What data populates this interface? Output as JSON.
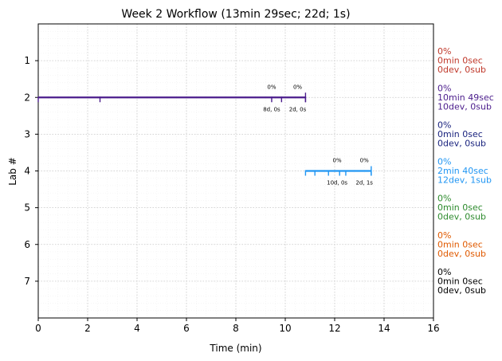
{
  "chart_data": {
    "type": "timeline",
    "title": "Week 2 Workflow (13min 29sec; 22d; 1s)",
    "xlabel": "Time (min)",
    "ylabel": "Lab #",
    "xlim": [
      0,
      16
    ],
    "ylim": [
      8,
      0
    ],
    "x_ticks": [
      0,
      2,
      4,
      6,
      8,
      10,
      12,
      14,
      16
    ],
    "y_ticks": [
      1,
      2,
      3,
      4,
      5,
      6,
      7
    ],
    "grid": true,
    "labs": [
      {
        "lab": 1,
        "color": "#c0392b",
        "lines": [
          "0%",
          "0min 0sec",
          "0dev, 0sub"
        ],
        "segments": []
      },
      {
        "lab": 2,
        "color": "#4b1d8c",
        "lines": [
          "0%",
          "10min 49sec",
          "10dev, 0sub"
        ],
        "segments": [
          {
            "start": 0,
            "end": 10.82
          }
        ],
        "ticks": [
          0,
          2.5,
          9.45,
          9.85,
          10.82
        ],
        "annotations": [
          {
            "x": 9.45,
            "above": "0%",
            "below": "8d, 0s"
          },
          {
            "x": 10.5,
            "above": "0%",
            "below": "2d, 0s"
          }
        ]
      },
      {
        "lab": 3,
        "color": "#1a237e",
        "lines": [
          "0%",
          "0min 0sec",
          "0dev, 0sub"
        ],
        "segments": []
      },
      {
        "lab": 4,
        "color": "#2196f3",
        "lines": [
          "0%",
          "2min 40sec",
          "12dev, 1sub"
        ],
        "segments": [
          {
            "start": 10.82,
            "end": 13.48
          }
        ],
        "ticks": [
          10.82,
          11.2,
          11.75,
          12.2,
          12.45,
          13.48
        ],
        "annotations": [
          {
            "x": 12.1,
            "above": "0%",
            "below": "10d, 0s"
          },
          {
            "x": 13.2,
            "above": "0%",
            "below": "2d, 1s"
          }
        ]
      },
      {
        "lab": 5,
        "color": "#2e8b2e",
        "lines": [
          "0%",
          "0min 0sec",
          "0dev, 0sub"
        ],
        "segments": []
      },
      {
        "lab": 6,
        "color": "#e05a00",
        "lines": [
          "0%",
          "0min 0sec",
          "0dev, 0sub"
        ],
        "segments": []
      },
      {
        "lab": 7,
        "color": "#000000",
        "lines": [
          "0%",
          "0min 0sec",
          "0dev, 0sub"
        ],
        "segments": []
      }
    ]
  }
}
